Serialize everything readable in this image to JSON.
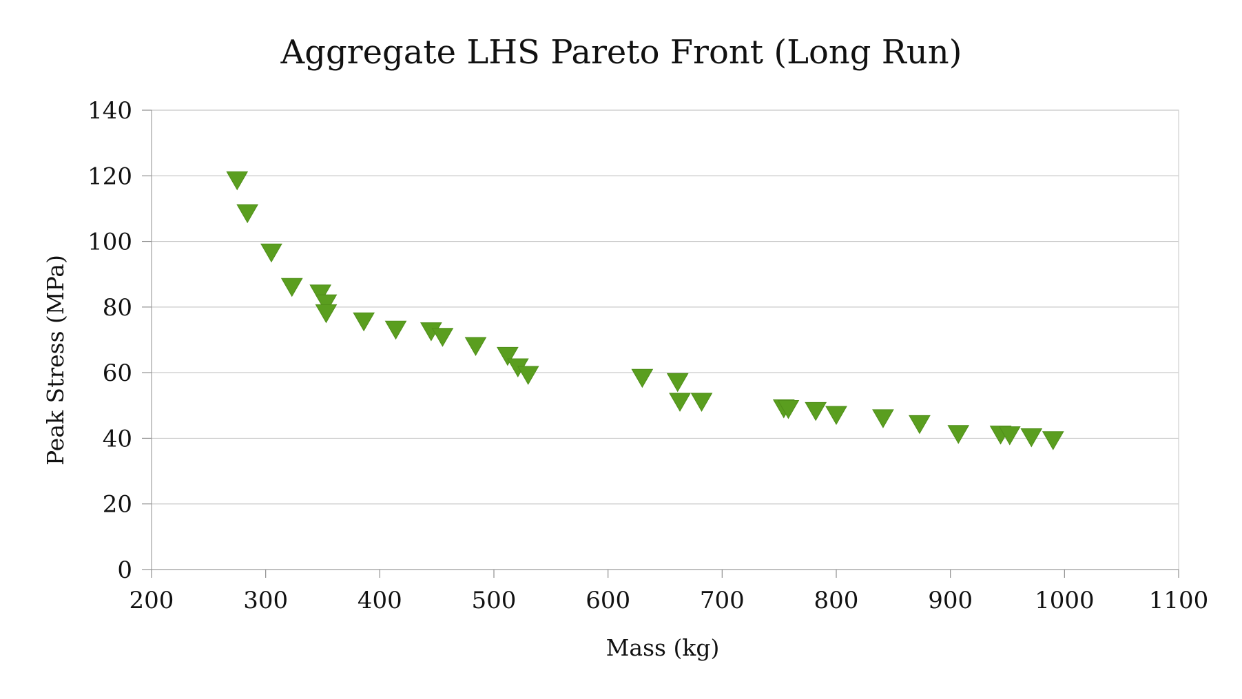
{
  "chart_data": {
    "type": "scatter",
    "title": "Aggregate LHS Pareto Front (Long Run)",
    "xlabel": "Mass (kg)",
    "ylabel": "Peak Stress (MPa)",
    "xlim": [
      200,
      1100
    ],
    "ylim": [
      0,
      140
    ],
    "x_ticks": [
      200,
      300,
      400,
      500,
      600,
      700,
      800,
      900,
      1000,
      1100
    ],
    "y_ticks": [
      0,
      20,
      40,
      60,
      80,
      100,
      120,
      140
    ],
    "grid": {
      "horizontal": true,
      "vertical": false
    },
    "legend": "none",
    "marker": "triangle-down",
    "marker_color": "#5a9e1f",
    "series": [
      {
        "points": [
          {
            "x": 275,
            "y": 118.5
          },
          {
            "x": 284,
            "y": 108.5
          },
          {
            "x": 305,
            "y": 96.5
          },
          {
            "x": 323,
            "y": 86.0
          },
          {
            "x": 348,
            "y": 84.0
          },
          {
            "x": 353,
            "y": 81.0
          },
          {
            "x": 353,
            "y": 78.0
          },
          {
            "x": 386,
            "y": 75.5
          },
          {
            "x": 414,
            "y": 73.0
          },
          {
            "x": 445,
            "y": 72.5
          },
          {
            "x": 455,
            "y": 70.8
          },
          {
            "x": 484,
            "y": 68.0
          },
          {
            "x": 512,
            "y": 65.0
          },
          {
            "x": 521,
            "y": 61.5
          },
          {
            "x": 530,
            "y": 59.2
          },
          {
            "x": 630,
            "y": 58.3
          },
          {
            "x": 661,
            "y": 57.0
          },
          {
            "x": 663,
            "y": 51.0
          },
          {
            "x": 682,
            "y": 51.0
          },
          {
            "x": 754,
            "y": 49.0
          },
          {
            "x": 758,
            "y": 48.8
          },
          {
            "x": 782,
            "y": 48.2
          },
          {
            "x": 800,
            "y": 47.0
          },
          {
            "x": 841,
            "y": 46.0
          },
          {
            "x": 873,
            "y": 44.2
          },
          {
            "x": 907,
            "y": 41.2
          },
          {
            "x": 944,
            "y": 41.0
          },
          {
            "x": 952,
            "y": 40.8
          },
          {
            "x": 971,
            "y": 40.2
          },
          {
            "x": 990,
            "y": 39.3
          }
        ]
      }
    ]
  }
}
